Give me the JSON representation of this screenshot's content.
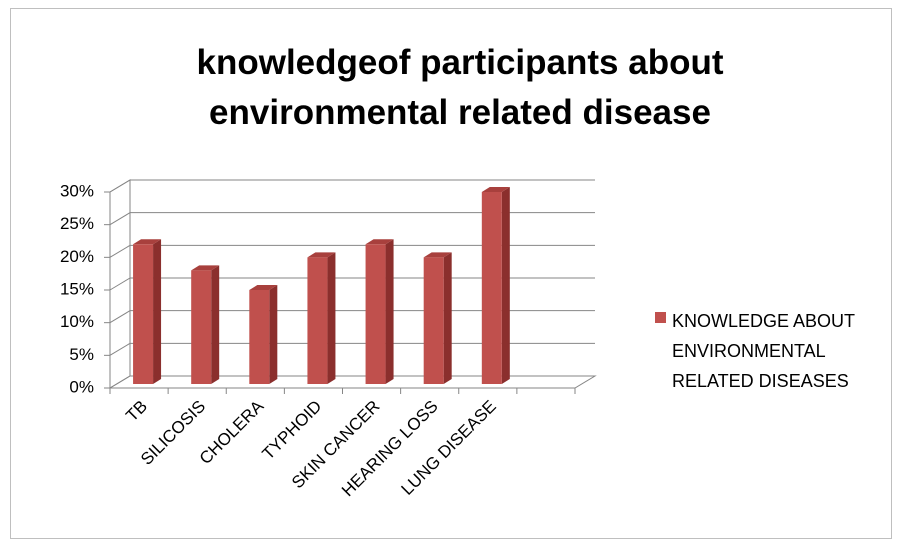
{
  "chart_data": {
    "type": "bar3d",
    "title": "knowledgeof participants about environmental related disease",
    "categories": [
      "TB",
      "SILICOSIS",
      "CHOLERA",
      "TYPHOID",
      "SKIN CANCER",
      "HEARING LOSS",
      "LUNG DISEASE",
      null
    ],
    "series": [
      {
        "name": "KNOWLEDGE ABOUT ENVIRONMENTAL RELATED DISEASES",
        "color": "#c0504d",
        "values": [
          22,
          18,
          15,
          20,
          22,
          20,
          30,
          null
        ]
      }
    ],
    "ylim": [
      0,
      30
    ],
    "yticks": [
      {
        "value": 0,
        "label": "0%"
      },
      {
        "value": 5,
        "label": "5%"
      },
      {
        "value": 10,
        "label": "10%"
      },
      {
        "value": 15,
        "label": "15%"
      },
      {
        "value": 20,
        "label": "20%"
      },
      {
        "value": 25,
        "label": "25%"
      },
      {
        "value": 30,
        "label": "30%"
      }
    ],
    "grid": true,
    "legend": "right"
  }
}
